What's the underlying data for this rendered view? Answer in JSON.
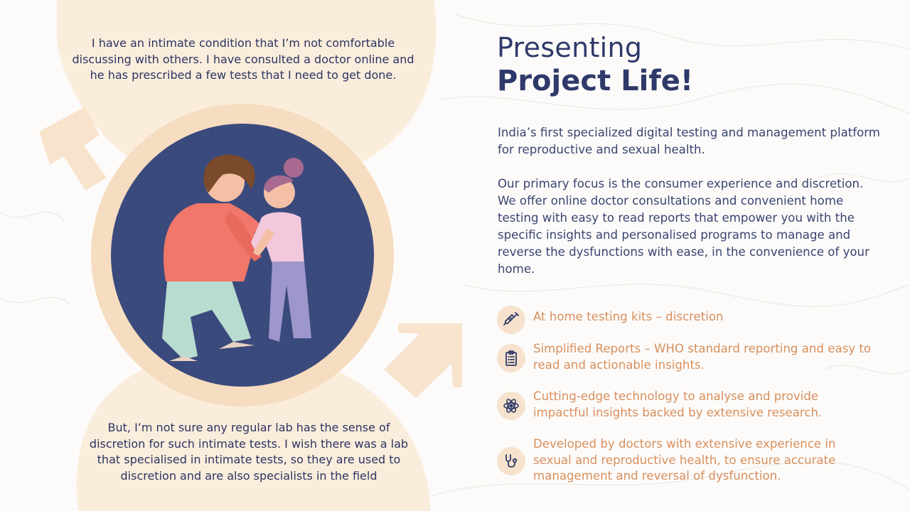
{
  "quotes": {
    "top": "I have an intimate condition that I’m not comfortable discussing with others. I have consulted a doctor online and he has prescribed a few tests that I need to get done.",
    "bottom": "But, I’m not sure any regular lab has the sense of discretion for such intimate tests. I wish there was a lab that specialised in intimate tests, so they are used to discretion and are also specialists in the field"
  },
  "hero": {
    "title_line1": "Presenting",
    "title_line2": "Project Life!",
    "description_1": "India’s first specialized digital testing and management platform for reproductive and sexual health.",
    "description_2": "Our primary focus is the consumer experience and discretion. We offer online doctor consultations and convenient home testing with easy to read reports that empower you with the specific insights and personalised programs to manage and reverse the dysfunctions with ease, in the convenience of your home."
  },
  "features": [
    {
      "icon": "syringe-icon",
      "text": "At home testing kits – discretion"
    },
    {
      "icon": "clipboard-report-icon",
      "text": "Simplified Reports – WHO standard reporting and easy to read and actionable insights."
    },
    {
      "icon": "atom-icon",
      "text": "Cutting-edge technology to analyse and provide impactful insights backed by extensive research."
    },
    {
      "icon": "stethoscope-icon",
      "text": "Developed by doctors with extensive experience in sexual and reproductive health, to ensure accurate management and reversal of dysfunction."
    }
  ],
  "colors": {
    "navy": "#2f3a6a",
    "peach_text": "#d98f5c",
    "peach_bg": "#f8e3cc",
    "circle_fill": "#3b4a7c"
  }
}
